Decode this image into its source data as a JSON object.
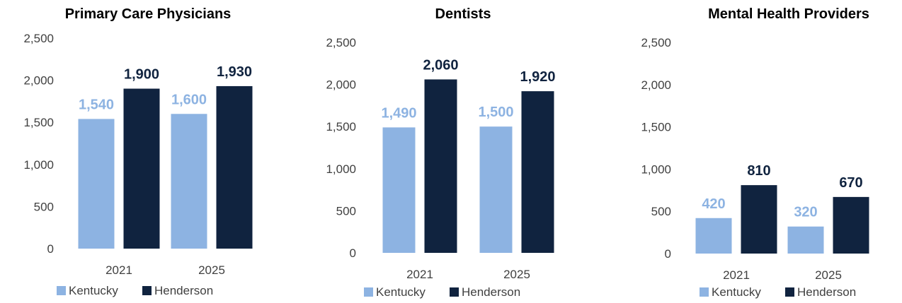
{
  "colors": {
    "kentucky": "#8DB3E2",
    "henderson": "#10233F",
    "kentucky_label": "#8DB3E2",
    "henderson_label": "#10233F",
    "axis_text": "#404040",
    "title": "#000000"
  },
  "chart_data": [
    {
      "type": "bar",
      "title": "Primary Care Physicians",
      "categories": [
        "2021",
        "2025"
      ],
      "series": [
        {
          "name": "Kentucky",
          "values": [
            1540,
            1600
          ],
          "labels": [
            "1,540",
            "1,600"
          ]
        },
        {
          "name": "Henderson",
          "values": [
            1900,
            1930
          ],
          "labels": [
            "1,900",
            "1,930"
          ]
        }
      ],
      "ylim": [
        0,
        2500
      ],
      "yticks": [
        "0",
        "500",
        "1,000",
        "1,500",
        "2,000",
        "2,500"
      ],
      "legend": [
        "Kentucky",
        "Henderson"
      ],
      "legend_position": "bottom-left",
      "grid": false
    },
    {
      "type": "bar",
      "title": "Dentists",
      "categories": [
        "2021",
        "2025"
      ],
      "series": [
        {
          "name": "Kentucky",
          "values": [
            1490,
            1500
          ],
          "labels": [
            "1,490",
            "1,500"
          ]
        },
        {
          "name": "Henderson",
          "values": [
            2060,
            1920
          ],
          "labels": [
            "2,060",
            "1,920"
          ]
        }
      ],
      "ylim": [
        0,
        2500
      ],
      "yticks": [
        "0",
        "500",
        "1,000",
        "1,500",
        "2,000",
        "2,500"
      ],
      "legend": [
        "Kentucky",
        "Henderson"
      ],
      "legend_position": "bottom-left",
      "grid": false
    },
    {
      "type": "bar",
      "title": "Mental Health Providers",
      "categories": [
        "2021",
        "2025"
      ],
      "series": [
        {
          "name": "Kentucky",
          "values": [
            420,
            320
          ],
          "labels": [
            "420",
            "320"
          ]
        },
        {
          "name": "Henderson",
          "values": [
            810,
            670
          ],
          "labels": [
            "810",
            "670"
          ]
        }
      ],
      "ylim": [
        0,
        2500
      ],
      "yticks": [
        "0",
        "500",
        "1,000",
        "1,500",
        "2,000",
        "2,500"
      ],
      "legend": [
        "Kentucky",
        "Henderson"
      ],
      "legend_position": "bottom-left",
      "grid": false
    }
  ]
}
